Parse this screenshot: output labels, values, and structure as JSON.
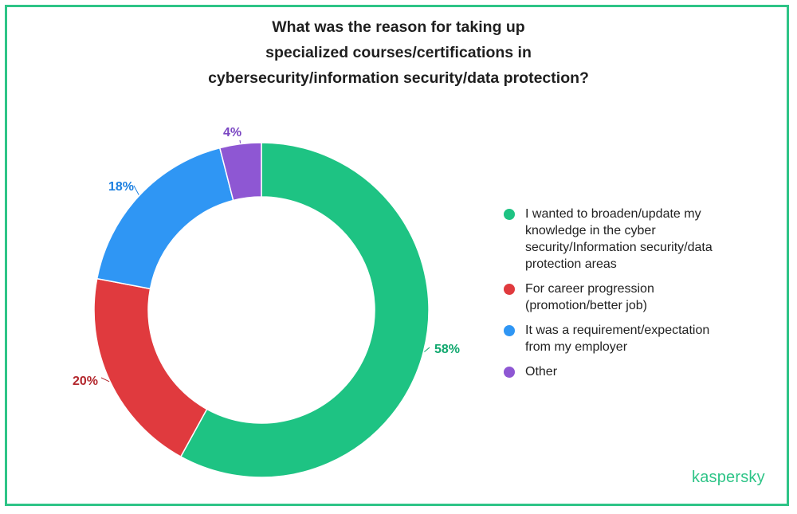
{
  "chart_data": {
    "type": "pie",
    "donut": true,
    "title_lines": [
      "What was the reason for taking up",
      "specialized courses/certifications in",
      "cybersecurity/information security/data protection?"
    ],
    "slices": [
      {
        "label_lines": [
          "I wanted to broaden/update my",
          "knowledge in the cyber",
          "security/Information security/data",
          "protection areas"
        ],
        "value": 58,
        "value_label": "58%",
        "color": "#1ec383"
      },
      {
        "label_lines": [
          "For career progression",
          "(promotion/better job)"
        ],
        "value": 20,
        "value_label": "20%",
        "color": "#e03a3e"
      },
      {
        "label_lines": [
          "It was a requirement/expectation",
          "from my employer"
        ],
        "value": 18,
        "value_label": "18%",
        "color": "#2f96f4"
      },
      {
        "label_lines": [
          "Other"
        ],
        "value": 4,
        "value_label": "4%",
        "color": "#8e57d3"
      }
    ],
    "legend_position": "right",
    "label_colors": [
      "#10a86e",
      "#b3272d",
      "#1b7fe0",
      "#7a46c2"
    ]
  },
  "brand": {
    "name": "kaspersky",
    "color": "#2ec487"
  }
}
